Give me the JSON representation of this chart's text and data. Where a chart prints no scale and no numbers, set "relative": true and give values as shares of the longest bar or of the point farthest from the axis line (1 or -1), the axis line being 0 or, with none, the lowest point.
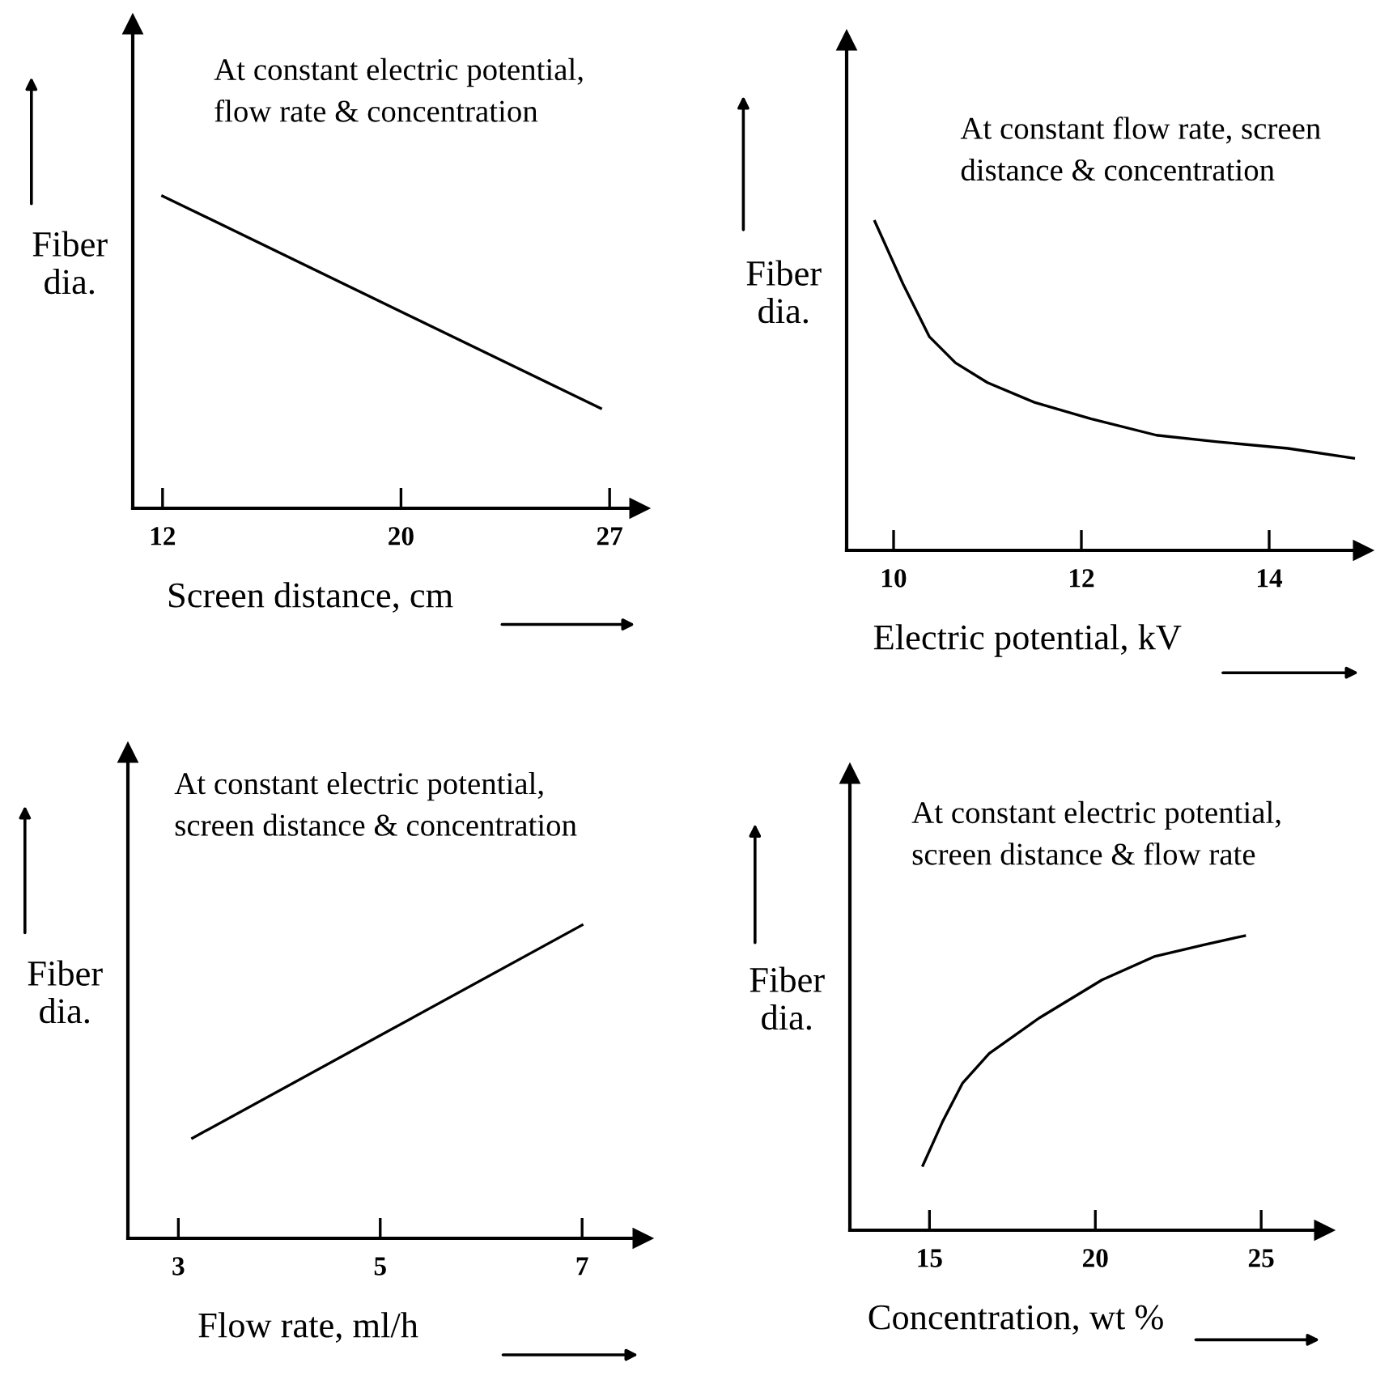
{
  "chart_data": [
    {
      "type": "line",
      "relative": true,
      "xlabel": "Screen distance, cm",
      "ylabel": "Fiber dia.",
      "annotations": [
        "At constant electric potential,\nflow rate & concentration"
      ],
      "xlim": [
        11,
        28
      ],
      "xticks": [
        12,
        20,
        27
      ],
      "x": [
        12,
        26.7
      ],
      "series": [
        {
          "color": "#000000",
          "values": [
            1,
            0.32
          ]
        }
      ]
    },
    {
      "type": "line",
      "relative": true,
      "xlabel": "Electric potential, kV",
      "ylabel": "Fiber dia.",
      "annotations": [
        "At constant flow rate, screen\ndistance & concentration"
      ],
      "xlim": [
        9.5,
        15
      ],
      "xticks": [
        10,
        12,
        14
      ],
      "x": [
        9.8,
        10.1,
        10.38,
        10.66,
        11.0,
        11.5,
        12.1,
        12.8,
        13.45,
        14.2,
        14.9
      ],
      "series": [
        {
          "color": "#000000",
          "values": [
            1,
            0.81,
            0.65,
            0.57,
            0.51,
            0.45,
            0.4,
            0.35,
            0.33,
            0.31,
            0.28
          ]
        }
      ]
    },
    {
      "type": "line",
      "relative": true,
      "xlabel": "Flow rate, ml/h",
      "ylabel": "Fiber dia.",
      "annotations": [
        "At constant electric potential,\nscreen distance & concentration"
      ],
      "xlim": [
        2.5,
        7.6
      ],
      "xticks": [
        3,
        5,
        7
      ],
      "x": [
        3.14,
        7.0
      ],
      "series": [
        {
          "color": "#000000",
          "values": [
            0.32,
            1
          ]
        }
      ]
    },
    {
      "type": "line",
      "relative": true,
      "xlabel": "Concentration, wt %",
      "ylabel": "Fiber dia.",
      "annotations": [
        "At constant electric potential,\nscreen distance & flow rate"
      ],
      "xlim": [
        12.6,
        26.9
      ],
      "xticks": [
        15,
        20,
        25
      ],
      "x": [
        14.8,
        15.4,
        16.0,
        16.8,
        18.3,
        20.2,
        21.8,
        23.3,
        24.5
      ],
      "series": [
        {
          "color": "#000000",
          "values": [
            0.22,
            0.37,
            0.5,
            0.6,
            0.72,
            0.85,
            0.93,
            0.97,
            1
          ]
        }
      ]
    }
  ]
}
